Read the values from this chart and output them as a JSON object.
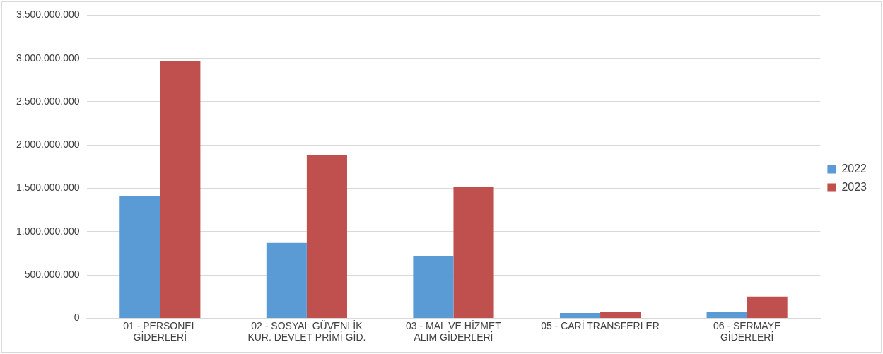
{
  "chart_data": {
    "type": "bar",
    "categories": [
      "01 - PERSONEL\nGİDERLERİ",
      "02 - SOSYAL GÜVENLİK\nKUR. DEVLET PRİMİ GİD.",
      "03 - MAL VE HİZMET\nALIM GİDERLERİ",
      "05 - CARİ TRANSFERLER",
      "06 - SERMAYE\nGİDERLERİ"
    ],
    "series": [
      {
        "name": "2022",
        "color": "#5b9bd5",
        "values": [
          1410000000,
          870000000,
          720000000,
          60000000,
          70000000
        ]
      },
      {
        "name": "2023",
        "color": "#c0504d",
        "values": [
          2970000000,
          1880000000,
          1520000000,
          70000000,
          250000000
        ]
      }
    ],
    "ylim": [
      0,
      3500000000
    ],
    "yticks": [
      0,
      {
        "value": 500000000,
        "label": "500.000.000"
      },
      {
        "value": 1000000000,
        "label": "1.000.000.000"
      },
      {
        "value": 1500000000,
        "label": "1.500.000.000"
      },
      {
        "value": 2000000000,
        "label": "2.000.000.000"
      },
      {
        "value": 2500000000,
        "label": "2.500.000.000"
      },
      {
        "value": 3000000000,
        "label": "3.000.000.000"
      },
      {
        "value": 3500000000,
        "label": "3.500.000.000"
      }
    ],
    "grid": "y",
    "legend": "right"
  }
}
